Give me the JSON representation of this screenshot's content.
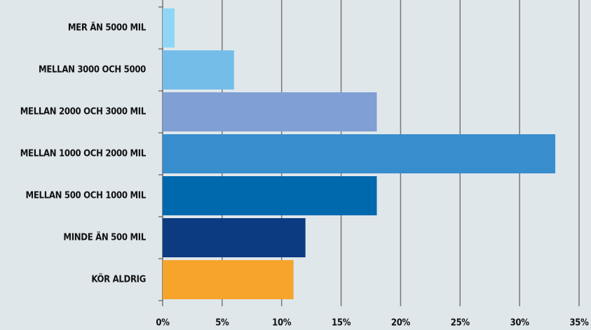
{
  "chart_data": {
    "type": "bar",
    "orientation": "horizontal",
    "categories": [
      "MER ÄN 5000 MIL",
      "MELLAN 3000 OCH 5000",
      "MELLAN 2000 OCH 3000 MIL",
      "MELLAN 1000 OCH 2000 MIL",
      "MELLAN 500 OCH 1000 MIL",
      "MINDE ÄN 500 MIL",
      "KÖR ALDRIG"
    ],
    "values": [
      1,
      6,
      18,
      33,
      18,
      12,
      11
    ],
    "colors": [
      "#8fd6f6",
      "#74bde9",
      "#7f9fd5",
      "#388dcd",
      "#0068ad",
      "#0c3b82",
      "#f6a42c"
    ],
    "xlim": [
      0,
      35
    ],
    "xticks": [
      {
        "value": 0,
        "label": "0%"
      },
      {
        "value": 5,
        "label": "5%"
      },
      {
        "value": 10,
        "label": "10%"
      },
      {
        "value": 15,
        "label": "15%"
      },
      {
        "value": 20,
        "label": "20%"
      },
      {
        "value": 25,
        "label": "25%"
      },
      {
        "value": 30,
        "label": "30%"
      },
      {
        "value": 35,
        "label": "35%"
      }
    ],
    "grid": true
  }
}
